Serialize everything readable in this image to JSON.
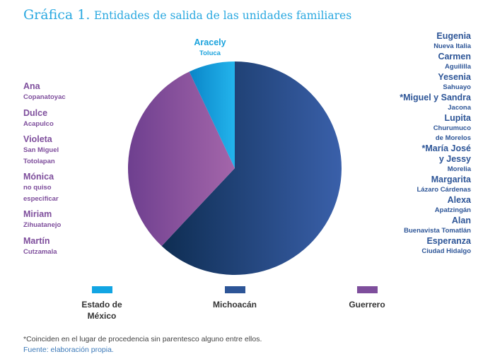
{
  "title": {
    "label": "Gráfica 1.",
    "text": "Entidades de salida de las unidades familiares"
  },
  "chart_data": {
    "type": "pie",
    "title": "Gráfica 1. Entidades de salida de las unidades familiares",
    "legend_position": "bottom",
    "slices": [
      {
        "name": "Michoacán",
        "value": 62,
        "color": "#2d5597",
        "grad": [
          "#0e2d52",
          "#3a60aa"
        ],
        "entries": [
          {
            "name": "Eugenia",
            "place": [
              "Nueva Italia"
            ]
          },
          {
            "name": "Carmen",
            "place": [
              "Aguililla"
            ]
          },
          {
            "name": "Yesenia",
            "place": [
              "Sahuayo"
            ]
          },
          {
            "name": "*Miguel y Sandra",
            "place": [
              "Jacona"
            ]
          },
          {
            "name": "Lupita",
            "place": [
              "Churumuco",
              "de Morelos"
            ]
          },
          {
            "name": "*María José",
            "name2": "y Jessy",
            "place": [
              "Morelia"
            ]
          },
          {
            "name": "Margarita",
            "place": [
              "Lázaro Cárdenas"
            ]
          },
          {
            "name": "Alexa",
            "place": [
              "Apatzingán"
            ]
          },
          {
            "name": "Alan",
            "place": [
              "Buenavista Tomatlán"
            ]
          },
          {
            "name": "Esperanza",
            "place": [
              "Ciudad Hidalgo"
            ]
          }
        ]
      },
      {
        "name": "Guerrero",
        "value": 31,
        "color": "#7e4e9c",
        "grad": [
          "#6e3f8f",
          "#a466aa"
        ],
        "entries": [
          {
            "name": "Ana",
            "place": [
              "Copanatoyac"
            ]
          },
          {
            "name": "Dulce",
            "place": [
              "Acapulco"
            ]
          },
          {
            "name": "Violeta",
            "place": [
              "San Miguel",
              "Totolapan"
            ]
          },
          {
            "name": "Mónica",
            "place": [
              "no quiso",
              "especificar"
            ]
          },
          {
            "name": "Miriam",
            "place": [
              "Zihuatanejo"
            ]
          },
          {
            "name": "Martín",
            "place": [
              "Cutzamala"
            ]
          }
        ]
      },
      {
        "name": "Estado de México",
        "value": 7,
        "color": "#12a5e3",
        "grad": [
          "#0a85c8",
          "#23b4ec"
        ],
        "entries": [
          {
            "name": "Aracely",
            "place": [
              "Toluca"
            ]
          }
        ]
      }
    ],
    "legend": [
      {
        "line1": "Estado de",
        "line2": "México",
        "color": "#12a5e3"
      },
      {
        "line1": "Michoacán",
        "color": "#2d5597"
      },
      {
        "line1": "Guerrero",
        "color": "#7e4e9c"
      }
    ]
  },
  "footnote": "*Coinciden en el lugar de procedencia sin parentesco alguno entre ellos.",
  "source": "Fuente: elaboración propia."
}
